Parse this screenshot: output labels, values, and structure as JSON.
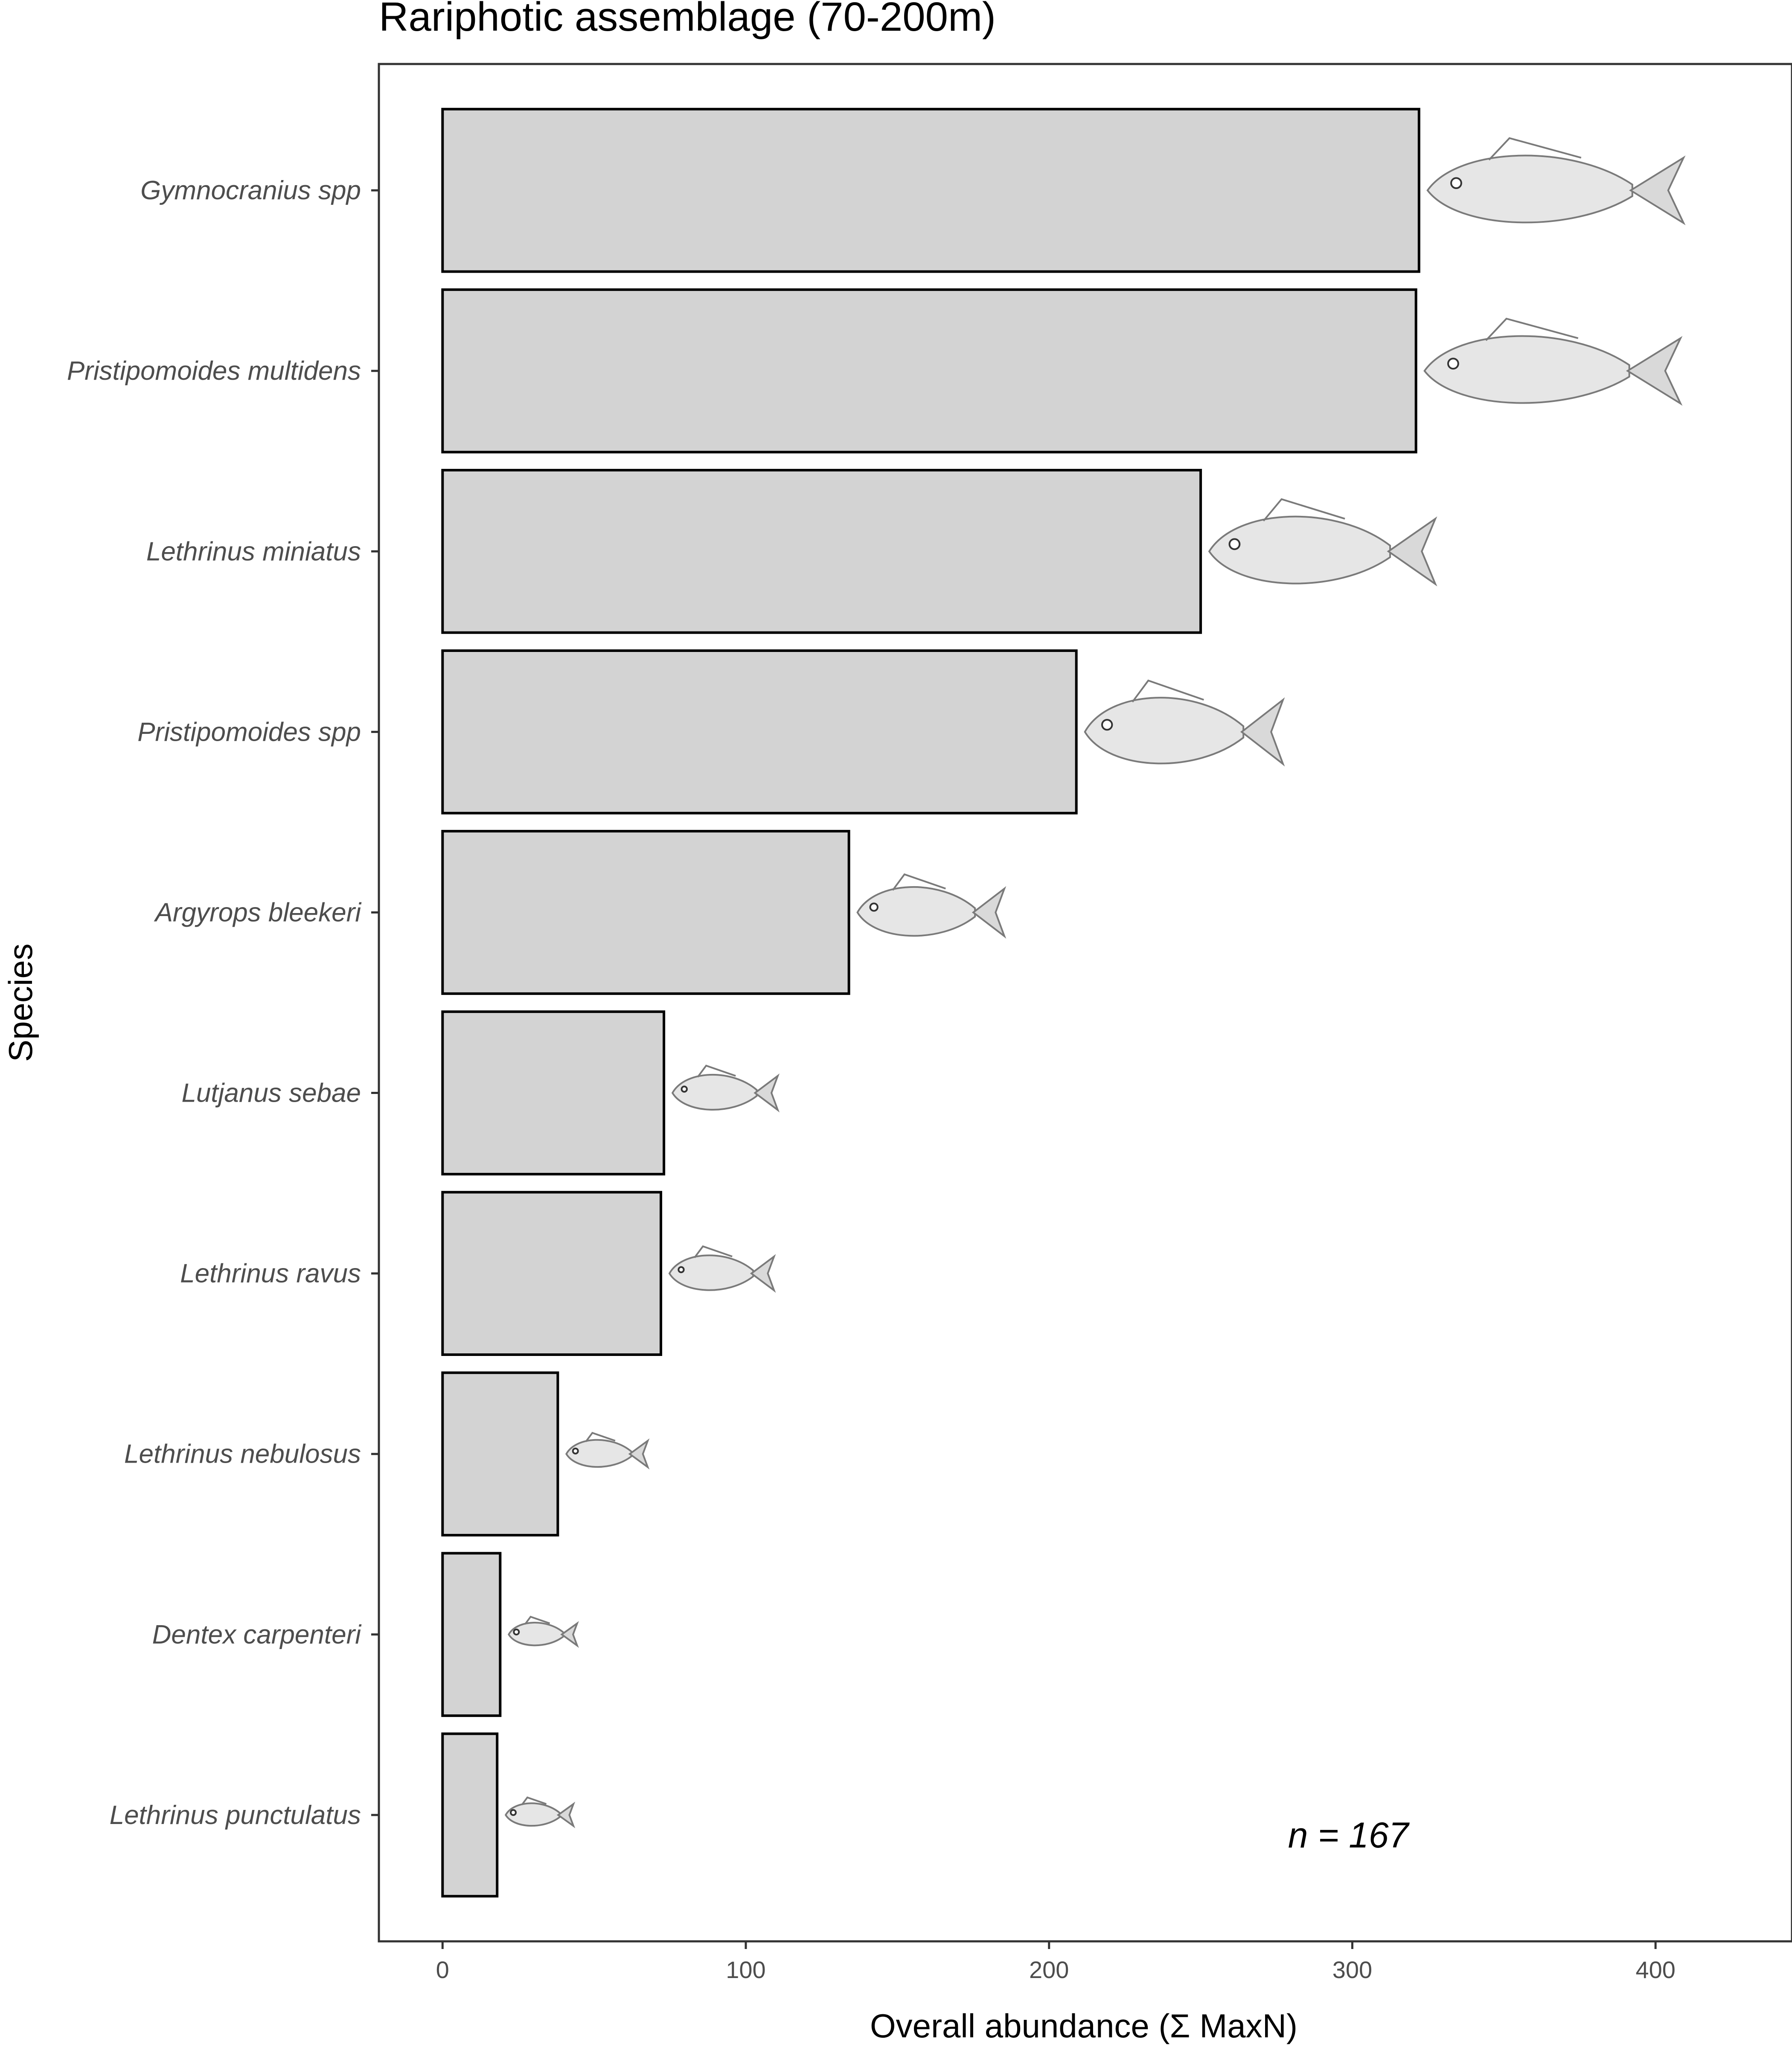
{
  "chart_data": {
    "type": "bar",
    "orientation": "horizontal",
    "title": "Rariphotic assemblage (70-200m)",
    "xlabel": "Overall abundance (Σ MaxN)",
    "ylabel": "Species",
    "categories": [
      "Gymnocranius spp",
      "Pristipomoides multidens",
      "Lethrinus miniatus",
      "Pristipomoides spp",
      "Argyrops bleekeri",
      "Lutjanus sebae",
      "Lethrinus ravus",
      "Lethrinus nebulosus",
      "Dentex carpenteri",
      "Lethrinus punctulatus"
    ],
    "values": [
      322,
      321,
      250,
      209,
      134,
      73,
      72,
      38,
      19,
      18
    ],
    "xlim": [
      -21,
      445
    ],
    "xticks": [
      0,
      100,
      200,
      300,
      400
    ],
    "annotation": "n = 167",
    "grid": false,
    "legend": "none",
    "colors": {
      "bar_fill": "#d3d3d3",
      "bar_stroke": "#000000",
      "fish": "#7a7a7a"
    },
    "icons": [
      "fish-illustration"
    ]
  }
}
